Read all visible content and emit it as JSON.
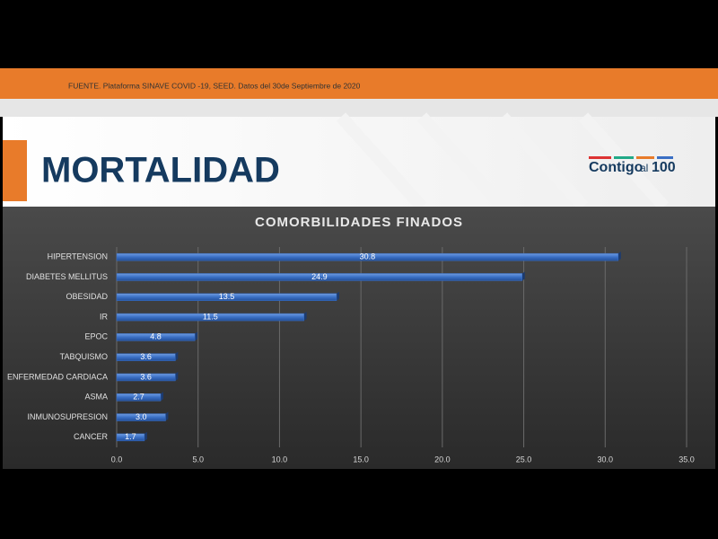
{
  "header": {
    "source": "FUENTE. Plataforma SINAVE COVID -19, SEED. Datos del 30de Septiembre de 2020",
    "title": "MORTALIDAD",
    "logo": [
      "Contigo",
      "al",
      "100"
    ]
  },
  "chart_data": {
    "type": "barh",
    "title": "COMORBILIDADES FINADOS",
    "categories": [
      "HIPERTENSION",
      "DIABETES MELLITUS",
      "OBESIDAD",
      "IR",
      "EPOC",
      "TABQUISMO",
      "ENFERMEDAD CARDIACA",
      "ASMA",
      "INMUNOSUPRESION",
      "CANCER"
    ],
    "values": [
      30.8,
      24.9,
      13.5,
      11.5,
      4.8,
      3.6,
      3.6,
      2.7,
      3.0,
      1.7
    ],
    "value_labels": [
      "30.8",
      "24.9",
      "13.5",
      "11.5",
      "4.8",
      "3.6",
      "3.6",
      "2.7",
      "3.0",
      "1.7"
    ],
    "color": "#3a6fc4",
    "xlim": [
      0,
      35
    ],
    "xticks": [
      {
        "value": 0,
        "label": "0.0"
      },
      {
        "value": 5,
        "label": "5.0"
      },
      {
        "value": 10,
        "label": "10.0"
      },
      {
        "value": 15,
        "label": "15.0"
      },
      {
        "value": 20,
        "label": "20.0"
      },
      {
        "value": 25,
        "label": "25.0"
      },
      {
        "value": 30,
        "label": "30.0"
      },
      {
        "value": 35,
        "label": "35.0"
      }
    ],
    "grid": true
  }
}
